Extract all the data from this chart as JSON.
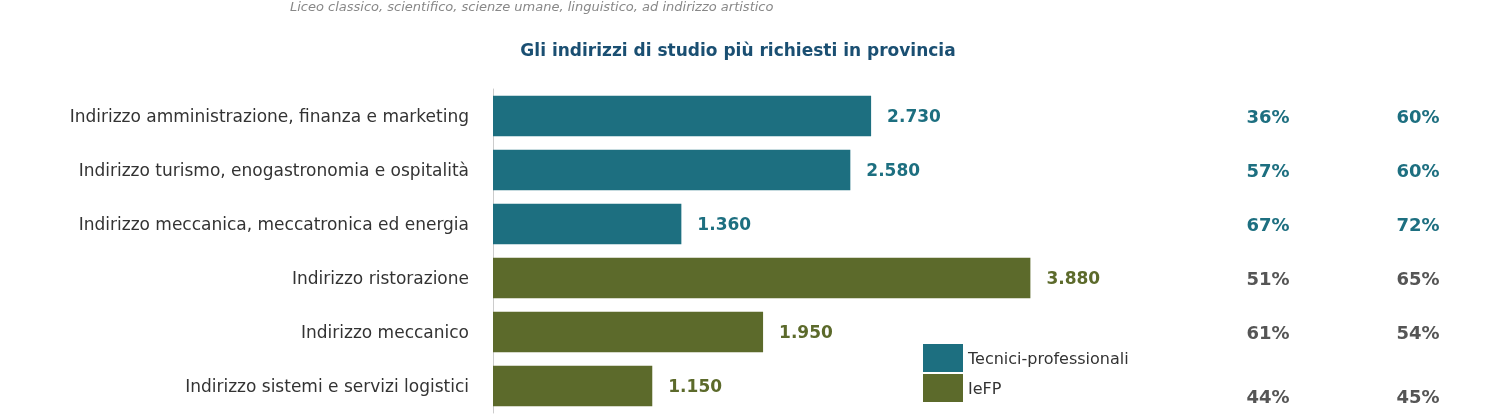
{
  "chart_data": {
    "type": "bar",
    "orientation": "horizontal",
    "stacked": true,
    "title": "Gli indirizzi di studio più richiesti in provincia",
    "categories": [
      "Indirizzo amministrazione, finanza e marketing",
      "Indirizzo turismo, enogastronomia e ospitalità",
      "Indirizzo meccanica, meccatronica ed energia",
      "Indirizzo ristorazione",
      "Indirizzo meccanico",
      "Indirizzo sistemi e servizi logistici"
    ],
    "series": [
      {
        "name": "Tecnici-professionali",
        "color": "#1d6f80",
        "values": [
          2730,
          2580,
          1360,
          null,
          null,
          null
        ],
        "value_labels": [
          "2.730",
          "2.580",
          "1.360",
          null,
          null,
          null
        ]
      },
      {
        "name": "IeFP",
        "color": "#5c6a2b",
        "values": [
          null,
          null,
          null,
          3880,
          1950,
          1150
        ],
        "value_labels": [
          null,
          null,
          null,
          "3.880",
          "1.950",
          "1.150"
        ]
      }
    ],
    "legend": "bottom right",
    "annotations": [
      "Liceo classico, scientifico, scienze umane, linguistico, ad indirizzo artistico",
      "36%",
      "60%",
      "57%",
      "60%",
      "67%",
      "72%",
      "51%",
      "65%",
      "61%",
      "54%",
      "44%",
      "45%"
    ]
  }
}
